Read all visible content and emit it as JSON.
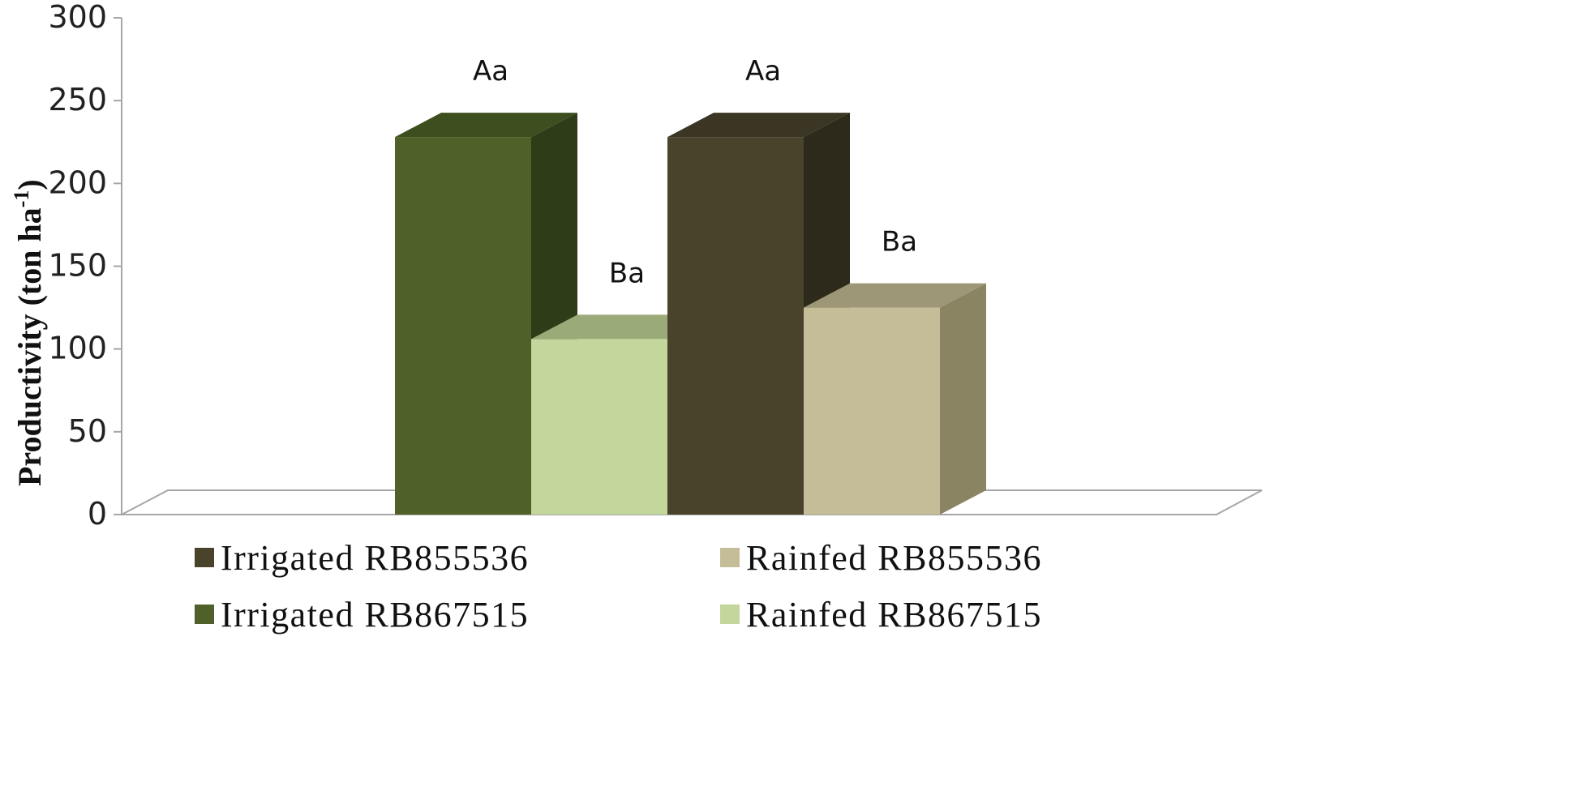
{
  "chart_data": {
    "type": "bar",
    "ylabel": "Productivity (ton ha-1)",
    "ylabel_main": "Productivity (ton ha",
    "ylabel_sup": "-1",
    "ylabel_close": ")",
    "ylim": [
      0,
      300
    ],
    "yticks": [
      "0",
      "50",
      "100",
      "150",
      "200",
      "250",
      "300"
    ],
    "grid": false,
    "legend_position": "bottom",
    "series": [
      {
        "name": "Irrigated  RB867515",
        "value": 228,
        "label": "Aa",
        "color": "#4f6128",
        "side_color": "#2e3c18",
        "top_color": "#3d4e1f"
      },
      {
        "name": "Rainfed  RB867515",
        "value": 106,
        "label": "Ba",
        "color": "#c3d69b",
        "side_color": "#98a878",
        "top_color": "#9aab79"
      },
      {
        "name": "Irrigated  RB855536",
        "value": 228,
        "label": "Aa",
        "color": "#4a432c",
        "side_color": "#2d291b",
        "top_color": "#3b3523"
      },
      {
        "name": "Rainfed  RB855536",
        "value": 125,
        "label": "Ba",
        "color": "#c4bd97",
        "side_color": "#8a8462",
        "top_color": "#9d9777"
      }
    ],
    "legend_order": [
      2,
      3,
      0,
      1
    ]
  }
}
